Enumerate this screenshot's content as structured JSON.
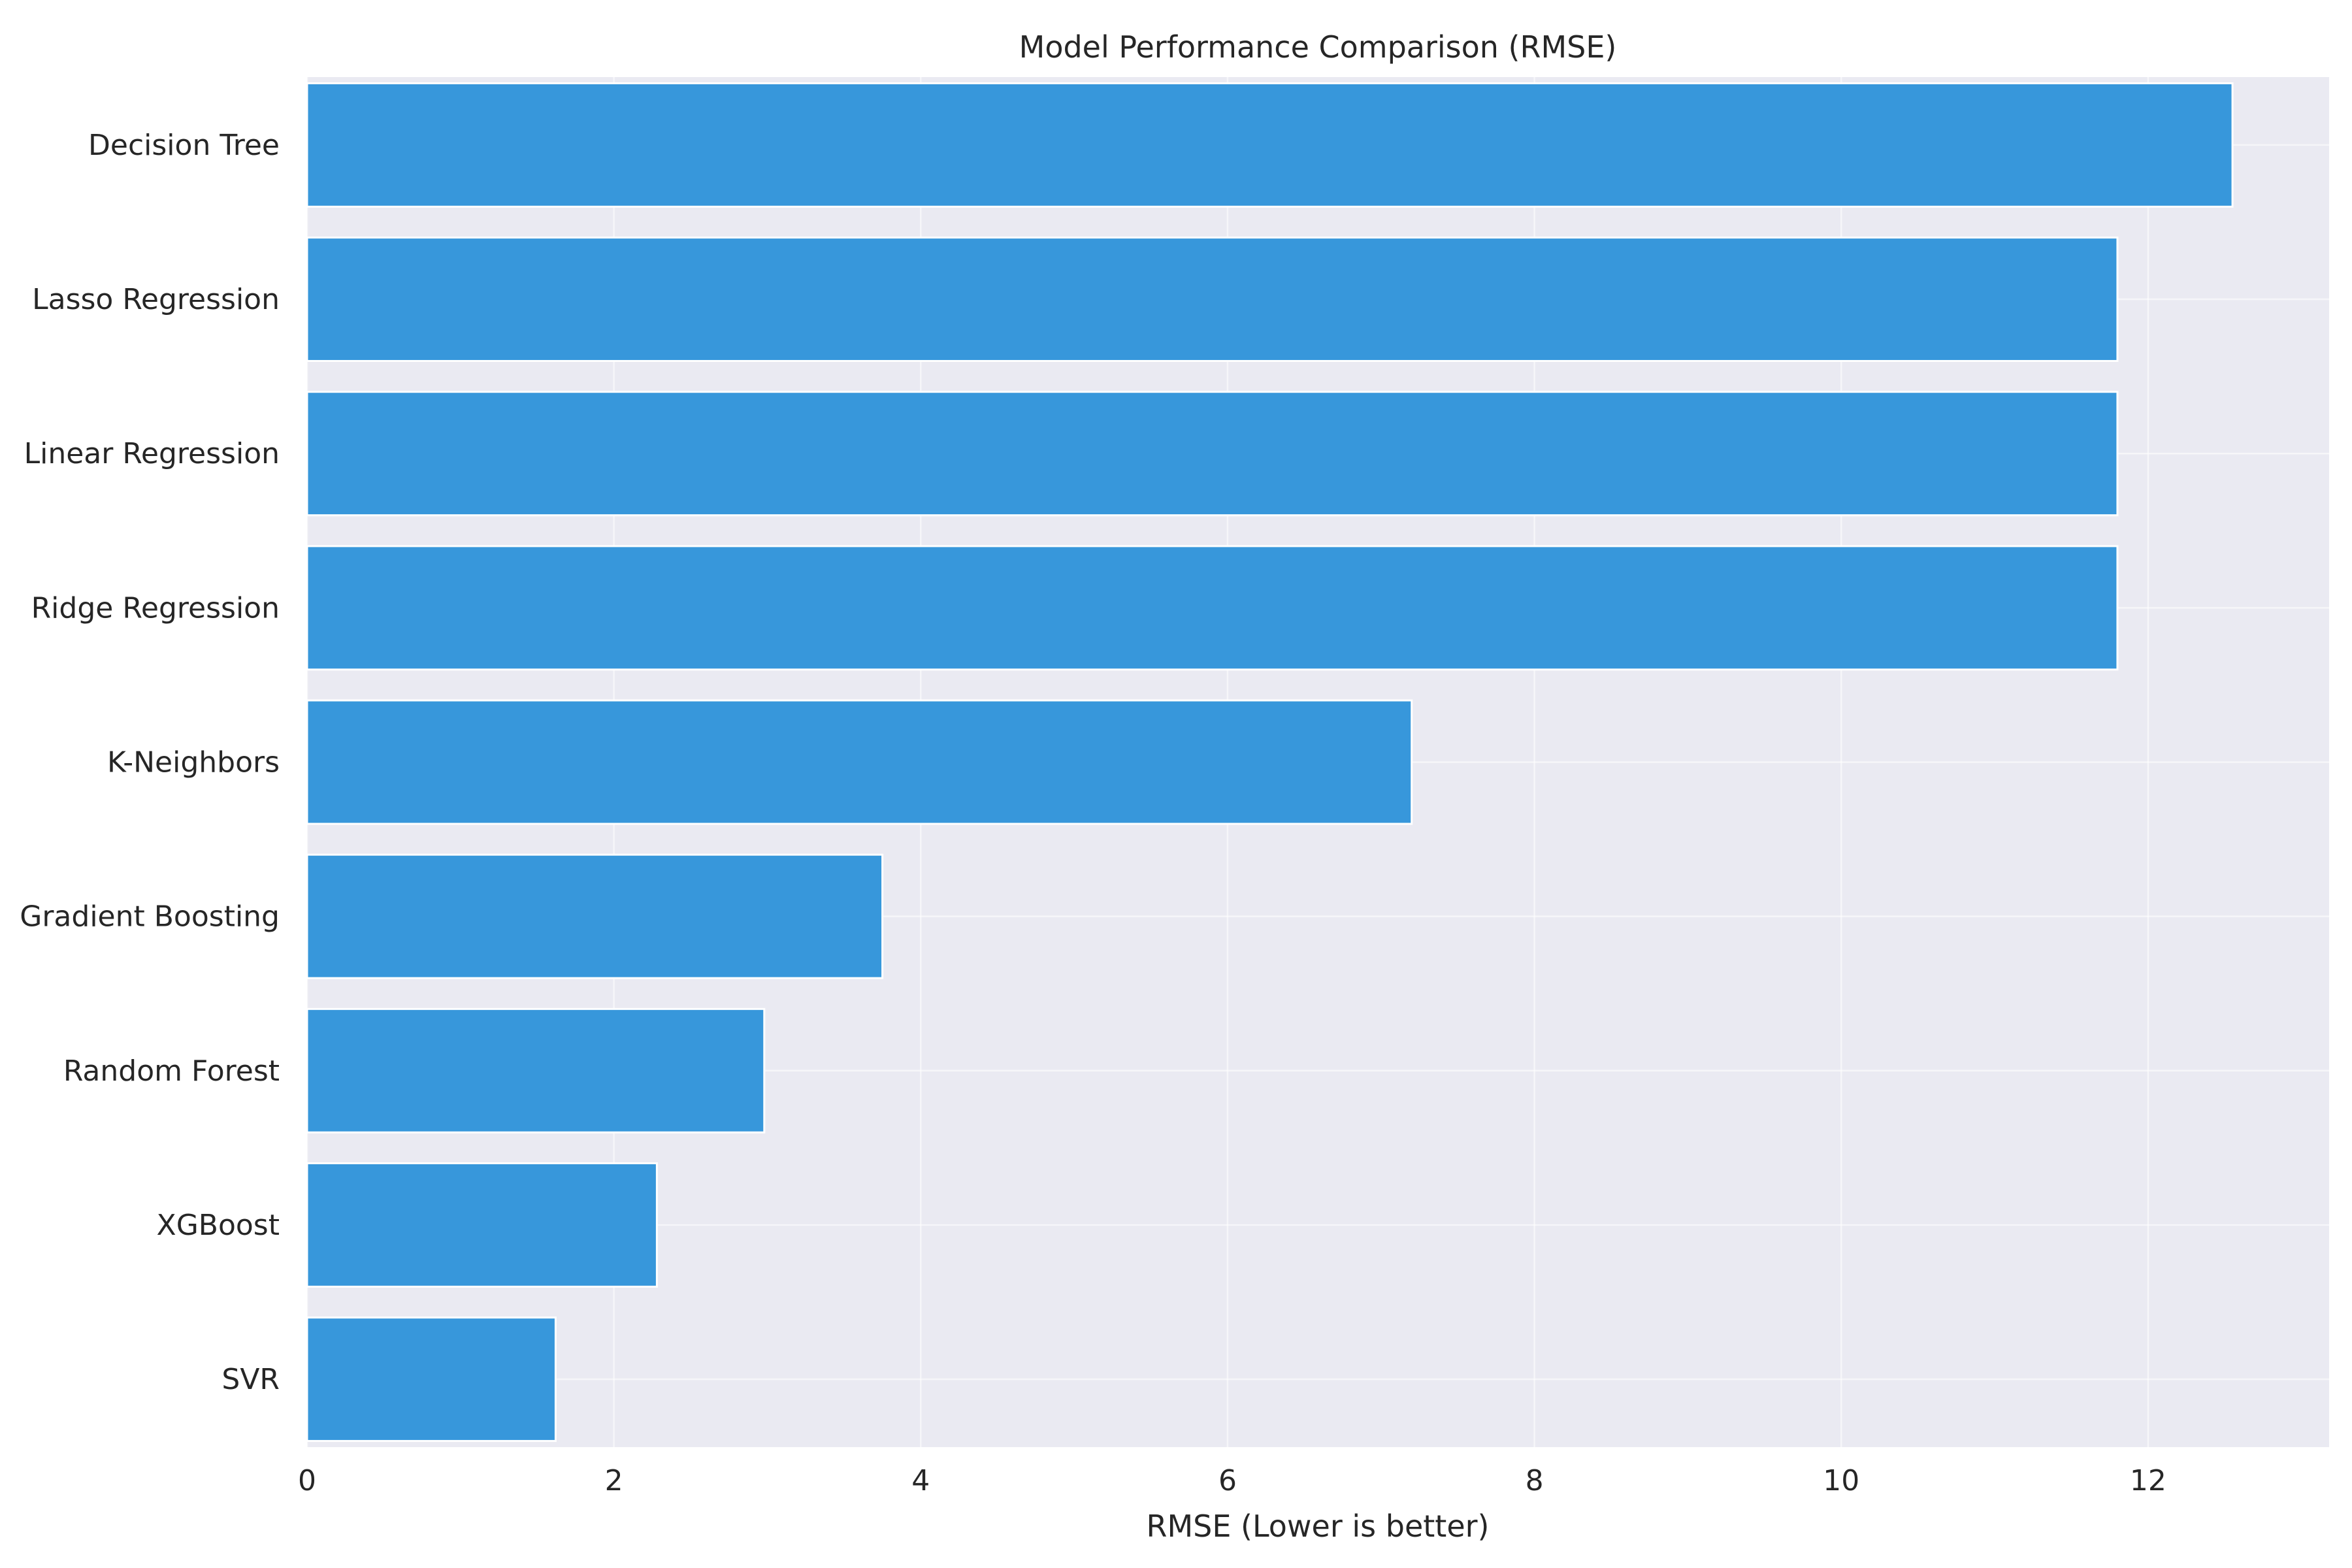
{
  "chart_data": {
    "type": "bar",
    "orientation": "horizontal",
    "title": "Model Performance Comparison (RMSE)",
    "xlabel": "RMSE (Lower is better)",
    "ylabel": "",
    "categories": [
      "Decision Tree",
      "Lasso Regression",
      "Linear Regression",
      "Ridge Regression",
      "K-Neighbors",
      "Gradient Boosting",
      "Random Forest",
      "XGBoost",
      "SVR"
    ],
    "values": [
      12.55,
      11.8,
      11.8,
      11.8,
      7.2,
      3.75,
      2.98,
      2.28,
      1.62
    ],
    "xlim": [
      0,
      13.18
    ],
    "xticks": [
      0,
      2,
      4,
      6,
      8,
      10,
      12
    ],
    "xtick_labels": [
      "0",
      "2",
      "4",
      "6",
      "8",
      "10",
      "12"
    ],
    "grid": true,
    "legend": "none",
    "colors": {
      "bar": "#3797db",
      "plot_background": "#eaeaf2",
      "grid": "#ffffff",
      "text": "#262626"
    }
  }
}
